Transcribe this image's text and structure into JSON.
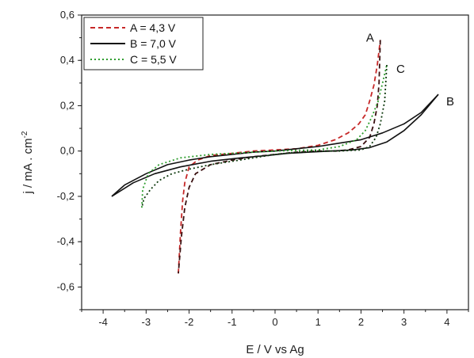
{
  "chart_data": {
    "type": "line",
    "xlabel": "E / V vs Ag",
    "ylabel": "j / mA . cm",
    "ylabel_sup": "-2",
    "xlim": [
      -4.5,
      4.5
    ],
    "ylim": [
      -0.7,
      0.6
    ],
    "x_ticks": [
      -4,
      -3,
      -2,
      -1,
      0,
      1,
      2,
      3,
      4
    ],
    "y_ticks": [
      -0.6,
      -0.4,
      -0.2,
      0.0,
      0.2,
      0.4,
      0.6
    ],
    "x_tick_labels": [
      "-4",
      "-3",
      "-2",
      "-1",
      "0",
      "1",
      "2",
      "3",
      "4"
    ],
    "y_tick_labels": [
      "-0,6",
      "-0,4",
      "-0,2",
      "0,0",
      "0,2",
      "0,4",
      "0,6"
    ],
    "grid": false,
    "legend_position": "top-left",
    "series": [
      {
        "name": "A = 4,3 V",
        "end_label": "A",
        "colors": [
          "#c62828",
          "#3a1010"
        ],
        "dash": "6,4",
        "forward": [
          [
            -2.25,
            -0.54
          ],
          [
            -2.2,
            -0.36
          ],
          [
            -2.15,
            -0.22
          ],
          [
            -2.1,
            -0.14
          ],
          [
            -2.0,
            -0.07
          ],
          [
            -1.8,
            -0.04
          ],
          [
            -1.5,
            -0.02
          ],
          [
            -1.0,
            -0.01
          ],
          [
            -0.5,
            0.0
          ],
          [
            0.0,
            0.005
          ],
          [
            0.5,
            0.01
          ],
          [
            1.0,
            0.025
          ],
          [
            1.4,
            0.05
          ],
          [
            1.7,
            0.08
          ],
          [
            1.95,
            0.12
          ],
          [
            2.1,
            0.16
          ],
          [
            2.2,
            0.22
          ],
          [
            2.3,
            0.29
          ],
          [
            2.38,
            0.38
          ],
          [
            2.45,
            0.49
          ]
        ],
        "reverse": [
          [
            2.45,
            0.49
          ],
          [
            2.42,
            0.3
          ],
          [
            2.38,
            0.2
          ],
          [
            2.3,
            0.12
          ],
          [
            2.2,
            0.06
          ],
          [
            2.0,
            0.02
          ],
          [
            1.7,
            0.005
          ],
          [
            1.4,
            0.0
          ],
          [
            1.0,
            0.0
          ],
          [
            0.5,
            -0.005
          ],
          [
            0.0,
            -0.015
          ],
          [
            -0.5,
            -0.025
          ],
          [
            -1.0,
            -0.04
          ],
          [
            -1.5,
            -0.06
          ],
          [
            -1.85,
            -0.1
          ],
          [
            -2.0,
            -0.16
          ],
          [
            -2.1,
            -0.25
          ],
          [
            -2.18,
            -0.38
          ],
          [
            -2.25,
            -0.54
          ]
        ]
      },
      {
        "name": "B = 7,0 V",
        "end_label": "B",
        "colors": [
          "#111111"
        ],
        "dash": "",
        "forward": [
          [
            -3.8,
            -0.2
          ],
          [
            -3.5,
            -0.15
          ],
          [
            -3.0,
            -0.1
          ],
          [
            -2.5,
            -0.06
          ],
          [
            -2.0,
            -0.04
          ],
          [
            -1.5,
            -0.025
          ],
          [
            -1.0,
            -0.015
          ],
          [
            -0.5,
            -0.005
          ],
          [
            0.0,
            0.0
          ],
          [
            0.5,
            0.01
          ],
          [
            1.0,
            0.02
          ],
          [
            1.5,
            0.035
          ],
          [
            2.0,
            0.05
          ],
          [
            2.5,
            0.08
          ],
          [
            3.0,
            0.12
          ],
          [
            3.4,
            0.17
          ],
          [
            3.8,
            0.25
          ]
        ],
        "reverse": [
          [
            3.8,
            0.25
          ],
          [
            3.4,
            0.16
          ],
          [
            3.0,
            0.09
          ],
          [
            2.6,
            0.04
          ],
          [
            2.2,
            0.015
          ],
          [
            1.8,
            0.005
          ],
          [
            1.3,
            0.0
          ],
          [
            0.8,
            -0.005
          ],
          [
            0.3,
            -0.01
          ],
          [
            -0.2,
            -0.02
          ],
          [
            -0.8,
            -0.03
          ],
          [
            -1.5,
            -0.045
          ],
          [
            -2.2,
            -0.07
          ],
          [
            -2.8,
            -0.1
          ],
          [
            -3.3,
            -0.14
          ],
          [
            -3.8,
            -0.2
          ]
        ]
      },
      {
        "name": "C = 5,5 V",
        "end_label": "C",
        "colors": [
          "#2e9e2e",
          "#0e3a0e"
        ],
        "dash": "2,3",
        "forward": [
          [
            -3.1,
            -0.25
          ],
          [
            -3.08,
            -0.17
          ],
          [
            -2.95,
            -0.1
          ],
          [
            -2.7,
            -0.06
          ],
          [
            -2.2,
            -0.03
          ],
          [
            -1.5,
            -0.015
          ],
          [
            -1.0,
            -0.01
          ],
          [
            -0.5,
            -0.005
          ],
          [
            0.0,
            0.0
          ],
          [
            0.5,
            0.003
          ],
          [
            1.0,
            0.005
          ],
          [
            1.5,
            0.02
          ],
          [
            1.9,
            0.05
          ],
          [
            2.1,
            0.09
          ],
          [
            2.25,
            0.15
          ],
          [
            2.4,
            0.22
          ],
          [
            2.5,
            0.3
          ],
          [
            2.6,
            0.38
          ]
        ],
        "reverse": [
          [
            2.6,
            0.38
          ],
          [
            2.55,
            0.22
          ],
          [
            2.45,
            0.12
          ],
          [
            2.35,
            0.06
          ],
          [
            2.2,
            0.02
          ],
          [
            2.0,
            0.005
          ],
          [
            1.5,
            0.0
          ],
          [
            1.0,
            0.0
          ],
          [
            0.5,
            -0.005
          ],
          [
            0.0,
            -0.015
          ],
          [
            -0.5,
            -0.03
          ],
          [
            -1.0,
            -0.045
          ],
          [
            -1.5,
            -0.06
          ],
          [
            -2.0,
            -0.08
          ],
          [
            -2.4,
            -0.1
          ],
          [
            -2.7,
            -0.13
          ],
          [
            -2.9,
            -0.17
          ],
          [
            -3.05,
            -0.21
          ],
          [
            -3.1,
            -0.25
          ]
        ]
      }
    ]
  }
}
